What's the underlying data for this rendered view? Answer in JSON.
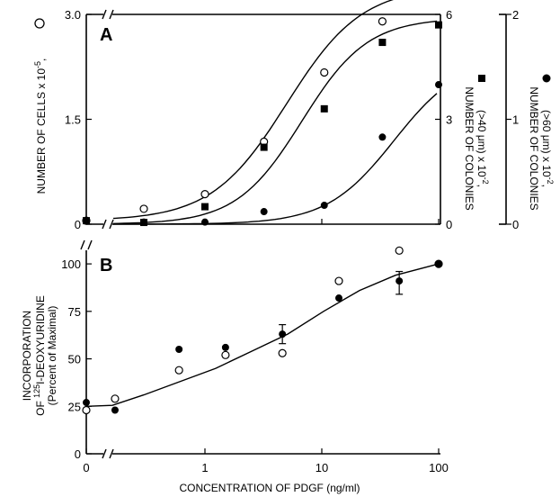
{
  "chart_data": [
    {
      "panel": "A",
      "type": "scatter",
      "x_axis": {
        "scale": "log",
        "ticks": [
          "0",
          "1",
          "10",
          "100"
        ]
      },
      "y_axes": [
        {
          "label_parts": [
            "NUMBER OF CELLS x 10",
            "-5",
            ","
          ],
          "series_marker": "open-circle",
          "ylim": [
            0,
            3.0
          ],
          "ticks": [
            "0",
            "1.5",
            "3.0"
          ]
        },
        {
          "label_parts": [
            "NUMBER OF COLONIES",
            "(>40 μm) x 10",
            "-2",
            ","
          ],
          "series_marker": "filled-square",
          "ylim": [
            0,
            6
          ],
          "ticks": [
            "0",
            "3",
            "6"
          ]
        },
        {
          "label_parts": [
            "NUMBER OF COLONIES",
            "(>60 μm) x 10",
            "-2",
            ","
          ],
          "series_marker": "filled-circle",
          "ylim": [
            0,
            2
          ],
          "ticks": [
            "0",
            "1",
            "2"
          ]
        }
      ],
      "series": [
        {
          "marker": "open-circle",
          "axis": 0,
          "points": [
            [
              0,
              0.05
            ],
            [
              0.3,
              0.22
            ],
            [
              1,
              0.43
            ],
            [
              3.2,
              1.18
            ],
            [
              10.5,
              2.17
            ],
            [
              33,
              2.9
            ]
          ]
        },
        {
          "marker": "filled-square",
          "axis": 1,
          "points": [
            [
              0,
              0.1
            ],
            [
              0.3,
              0.05
            ],
            [
              1,
              0.5
            ],
            [
              3.2,
              2.2
            ],
            [
              10.5,
              3.3
            ],
            [
              33,
              5.2
            ],
            [
              100,
              5.7
            ]
          ]
        },
        {
          "marker": "filled-circle",
          "axis": 2,
          "points": [
            [
              0,
              0.03
            ],
            [
              0.3,
              0.02
            ],
            [
              1,
              0.02
            ],
            [
              3.2,
              0.12
            ],
            [
              10.5,
              0.18
            ],
            [
              33,
              0.83
            ],
            [
              100,
              1.33
            ]
          ]
        }
      ]
    },
    {
      "panel": "B",
      "type": "scatter",
      "x_axis": {
        "scale": "log",
        "ticks": [
          "0",
          "1",
          "10",
          "100"
        ],
        "label": "CONCENTRATION OF PDGF (ng/ml)"
      },
      "y_axis": {
        "label_lines": [
          "INCORPORATION",
          "OF ",
          "125",
          "I-DEOXYURIDINE",
          "(Percent of Maximal)"
        ],
        "ylim": [
          0,
          110
        ],
        "ticks": [
          "0",
          "25",
          "50",
          "75",
          "100"
        ]
      },
      "series": [
        {
          "marker": "open-circle",
          "points": [
            [
              0,
              23
            ],
            [
              0.17,
              29
            ],
            [
              0.6,
              44
            ],
            [
              1.5,
              52
            ],
            [
              4.6,
              53
            ],
            [
              14,
              91
            ],
            [
              46,
              107
            ],
            [
              100,
              100
            ]
          ]
        },
        {
          "marker": "filled-circle",
          "points": [
            [
              0,
              27
            ],
            [
              0.17,
              23
            ],
            [
              0.6,
              55
            ],
            [
              1.5,
              56
            ],
            [
              4.6,
              63
            ],
            [
              14,
              82
            ],
            [
              46,
              91
            ],
            [
              100,
              100
            ]
          ]
        }
      ],
      "error_bars": [
        {
          "x": 4.6,
          "low": 58,
          "high": 68
        },
        {
          "x": 46,
          "low": 84,
          "high": 96
        }
      ]
    }
  ]
}
